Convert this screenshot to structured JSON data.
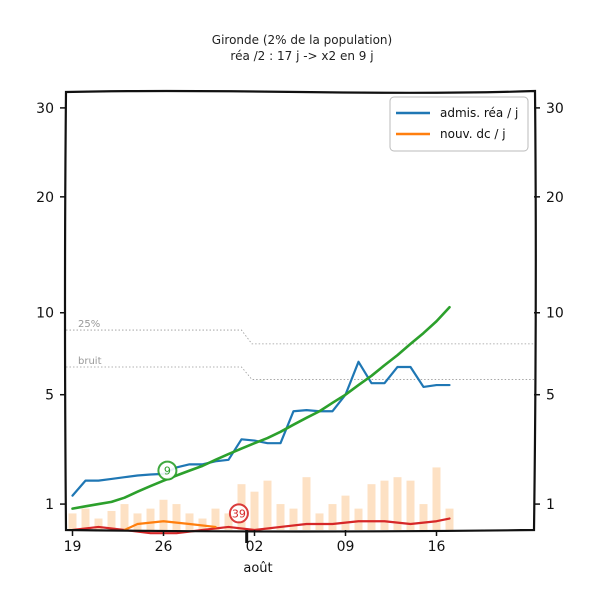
{
  "chart_data": {
    "type": "line",
    "title": "Gironde (2% de la population)",
    "subtitle": "réa /2 : 17 j -> x2 en 9 j",
    "xlabel": "août",
    "ylabel": "",
    "x_ticks": [
      {
        "day": 19,
        "label": "19"
      },
      {
        "day": 26,
        "label": "26"
      },
      {
        "day": 33,
        "label": "02"
      },
      {
        "day": 40,
        "label": "09"
      },
      {
        "day": 47,
        "label": "16"
      }
    ],
    "xlim": [
      18.5,
      54.5
    ],
    "y_scale": "sqrt",
    "ylim": [
      0.5,
      32
    ],
    "y_ticks": [
      1,
      5,
      10,
      20,
      30
    ],
    "y_ticks_right": [
      1,
      5,
      10,
      20,
      30
    ],
    "grid": false,
    "legend_position": "top-right",
    "legend": [
      {
        "label": "admis. réa / j",
        "color": "#1f77b4"
      },
      {
        "label": "nouv. dc / j",
        "color": "#ff7f0e"
      }
    ],
    "threshold_lines": [
      {
        "label": "25%",
        "points": [
          [
            18.5,
            8.8
          ],
          [
            32,
            8.8
          ],
          [
            32.8,
            7.9
          ],
          [
            54.5,
            7.9
          ]
        ]
      },
      {
        "label": "bruit",
        "points": [
          [
            18.5,
            6.5
          ],
          [
            32,
            6.5
          ],
          [
            32.8,
            5.8
          ],
          [
            54.5,
            5.8
          ]
        ]
      }
    ],
    "series": [
      {
        "name": "admis. réa / j",
        "color": "#1f77b4",
        "x": [
          19,
          20,
          21,
          22,
          23,
          24,
          25,
          26,
          27,
          28,
          29,
          30,
          31,
          32,
          33,
          34,
          35,
          36,
          37,
          38,
          39,
          40,
          41,
          42,
          43,
          44,
          45,
          46,
          47,
          48
        ],
        "values": [
          1.2,
          1.6,
          1.6,
          1.65,
          1.7,
          1.75,
          1.78,
          1.8,
          2.0,
          2.1,
          2.1,
          2.2,
          2.25,
          3.0,
          2.95,
          2.85,
          2.85,
          4.2,
          4.25,
          4.2,
          4.2,
          5.0,
          6.8,
          5.6,
          5.6,
          6.5,
          6.5,
          5.4,
          5.5,
          5.5
        ]
      },
      {
        "name": "",
        "color": "#2ca02c",
        "x": [
          19,
          20,
          21,
          22,
          23,
          24,
          25,
          26,
          27,
          28,
          29,
          30,
          31,
          32,
          33,
          34,
          35,
          36,
          37,
          38,
          39,
          40,
          41,
          42,
          43,
          44,
          45,
          46,
          47,
          48
        ],
        "values": [
          0.9,
          0.95,
          1.0,
          1.05,
          1.15,
          1.3,
          1.45,
          1.6,
          1.75,
          1.9,
          2.05,
          2.25,
          2.45,
          2.65,
          2.85,
          3.05,
          3.3,
          3.6,
          3.9,
          4.2,
          4.6,
          5.0,
          5.5,
          6.0,
          6.6,
          7.2,
          7.9,
          8.6,
          9.4,
          10.4
        ]
      },
      {
        "name": "",
        "color": "#d62728",
        "x": [
          19,
          21,
          23,
          25,
          27,
          29,
          31,
          33,
          35,
          37,
          39,
          41,
          43,
          45,
          47,
          48
        ],
        "values": [
          0.5,
          0.55,
          0.5,
          0.45,
          0.45,
          0.5,
          0.55,
          0.5,
          0.55,
          0.6,
          0.6,
          0.65,
          0.65,
          0.6,
          0.65,
          0.7
        ]
      },
      {
        "name": "nouv. dc / j",
        "color": "#ff7f0e",
        "x": [
          23,
          24,
          26,
          28,
          30
        ],
        "values": [
          0.5,
          0.6,
          0.65,
          0.6,
          0.55
        ]
      }
    ],
    "noise_bars": {
      "color": "#fdd9b5",
      "x": [
        19,
        20,
        21,
        22,
        23,
        24,
        25,
        26,
        27,
        28,
        29,
        30,
        31,
        32,
        33,
        34,
        35,
        36,
        37,
        38,
        39,
        40,
        41,
        42,
        43,
        44,
        45,
        46,
        47,
        48
      ],
      "values": [
        0.3,
        0.4,
        0.2,
        0.35,
        0.5,
        0.3,
        0.4,
        0.6,
        0.5,
        0.3,
        0.2,
        0.4,
        0.3,
        1.0,
        0.8,
        1.1,
        0.5,
        0.4,
        1.2,
        0.3,
        0.5,
        0.7,
        0.4,
        1.0,
        1.1,
        1.2,
        1.1,
        0.5,
        1.5,
        0.4
      ]
    },
    "markers": [
      {
        "label": "9",
        "x": 26.3,
        "y": 1.9,
        "color": "#2ca02c"
      },
      {
        "label": "39",
        "x": 31.8,
        "y": 0.8,
        "color": "#d62728"
      }
    ]
  }
}
